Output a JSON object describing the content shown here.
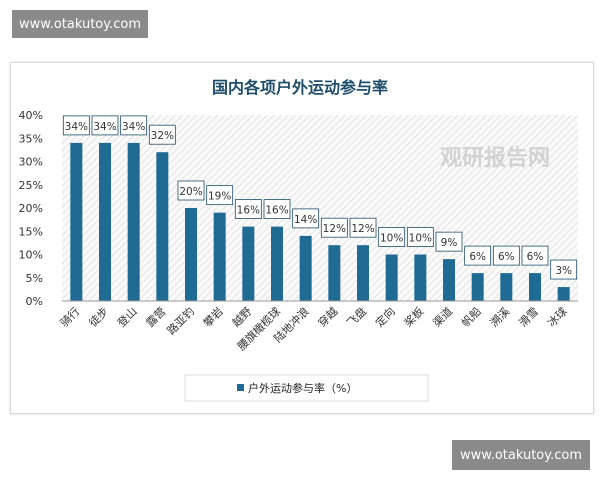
{
  "watermarks": {
    "top": "www.otakutoy.com",
    "bottom": "www.otakutoy.com",
    "center": "观研报告网"
  },
  "chart_data": {
    "type": "bar",
    "title": "国内各项户外运动参与率",
    "categories": [
      "骑行",
      "徒步",
      "登山",
      "露营",
      "路亚钓",
      "攀岩",
      "越野",
      "腰旗橄榄球",
      "陆地冲浪",
      "穿越",
      "飞盘",
      "定向",
      "桨板",
      "渠道",
      "帆船",
      "溯溪",
      "滑雪",
      "冰球"
    ],
    "series": [
      {
        "name": "户外运动参与率（%）",
        "values": [
          34,
          34,
          34,
          32,
          20,
          19,
          16,
          16,
          14,
          12,
          12,
          10,
          10,
          9,
          6,
          6,
          6,
          3
        ]
      }
    ],
    "data_labels": [
      "34%",
      "34%",
      "34%",
      "32%",
      "20%",
      "19%",
      "16%",
      "16%",
      "14%",
      "12%",
      "12%",
      "10%",
      "10%",
      "9%",
      "6%",
      "6%",
      "6%",
      "3%"
    ],
    "yticks": [
      "0%",
      "5%",
      "10%",
      "15%",
      "20%",
      "25%",
      "30%",
      "35%",
      "40%"
    ],
    "ylim": [
      0,
      40
    ],
    "grid": false,
    "legend": "bottom",
    "bar_color": "#1f6b93"
  }
}
